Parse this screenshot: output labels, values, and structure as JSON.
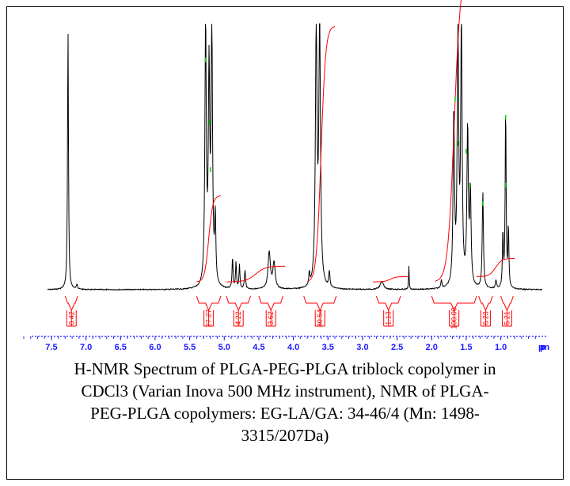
{
  "chart_data": {
    "type": "line",
    "title": "",
    "xlabel": "ppm",
    "ylabel": "",
    "xlim": [
      7.9,
      0.4
    ],
    "x_reversed": true,
    "ticks": [
      "7.5",
      "7.0",
      "6.5",
      "6.0",
      "5.5",
      "5.0",
      "4.5",
      "4.0",
      "3.5",
      "3.0",
      "2.5",
      "2.0",
      "1.5",
      "1.0"
    ],
    "tick_values": [
      7.5,
      7.0,
      6.5,
      6.0,
      5.5,
      5.0,
      4.5,
      4.0,
      3.5,
      3.0,
      2.5,
      2.0,
      1.5,
      1.0
    ],
    "axis_unit_label": "ppm",
    "peaks": [
      {
        "shift": 7.26,
        "height": 1.0,
        "width": 0.008
      },
      {
        "shift": 7.13,
        "height": 0.02,
        "width": 0.01
      },
      {
        "shift": 5.27,
        "height": 1.0,
        "width": 0.012
      },
      {
        "shift": 5.22,
        "height": 0.8,
        "width": 0.012
      },
      {
        "shift": 5.18,
        "height": 1.0,
        "width": 0.012
      },
      {
        "shift": 5.13,
        "height": 0.25,
        "width": 0.01
      },
      {
        "shift": 4.88,
        "height": 0.12,
        "width": 0.008
      },
      {
        "shift": 4.83,
        "height": 0.1,
        "width": 0.008
      },
      {
        "shift": 4.78,
        "height": 0.09,
        "width": 0.008
      },
      {
        "shift": 4.7,
        "height": 0.07,
        "width": 0.01
      },
      {
        "shift": 4.35,
        "height": 0.14,
        "width": 0.02
      },
      {
        "shift": 4.28,
        "height": 0.1,
        "width": 0.02
      },
      {
        "shift": 3.77,
        "height": 0.05,
        "width": 0.008
      },
      {
        "shift": 3.67,
        "height": 1.0,
        "width": 0.014
      },
      {
        "shift": 3.62,
        "height": 1.0,
        "width": 0.014
      },
      {
        "shift": 3.48,
        "height": 0.06,
        "width": 0.01
      },
      {
        "shift": 2.72,
        "height": 0.03,
        "width": 0.03
      },
      {
        "shift": 2.33,
        "height": 0.09,
        "width": 0.005
      },
      {
        "shift": 1.86,
        "height": 0.03,
        "width": 0.01
      },
      {
        "shift": 1.68,
        "height": 0.66,
        "width": 0.012
      },
      {
        "shift": 1.62,
        "height": 1.0,
        "width": 0.012
      },
      {
        "shift": 1.57,
        "height": 1.0,
        "width": 0.012
      },
      {
        "shift": 1.48,
        "height": 0.6,
        "width": 0.012
      },
      {
        "shift": 1.44,
        "height": 0.35,
        "width": 0.012
      },
      {
        "shift": 1.26,
        "height": 0.37,
        "width": 0.01
      },
      {
        "shift": 1.07,
        "height": 0.03,
        "width": 0.01
      },
      {
        "shift": 0.97,
        "height": 0.21,
        "width": 0.008
      },
      {
        "shift": 0.93,
        "height": 0.7,
        "width": 0.008
      },
      {
        "shift": 0.89,
        "height": 0.23,
        "width": 0.008
      }
    ],
    "integrals": [
      {
        "value": "0.42",
        "from": 7.3,
        "to": 7.12
      },
      {
        "value": "27.27",
        "from": 5.4,
        "to": 5.05
      },
      {
        "value": "4.22",
        "from": 4.97,
        "to": 4.62
      },
      {
        "value": "3.62",
        "from": 4.5,
        "to": 4.15
      },
      {
        "value": "80.54",
        "from": 3.85,
        "to": 3.38
      },
      {
        "value": "1.13",
        "from": 2.8,
        "to": 2.45
      },
      {
        "value": "100.00",
        "from": 2.0,
        "to": 1.35
      },
      {
        "value": "6.23",
        "from": 1.32,
        "to": 1.12
      },
      {
        "value": "5.21",
        "from": 1.0,
        "to": 0.82
      }
    ],
    "integral_curves": [
      {
        "from": 5.4,
        "to": 5.05,
        "base": 0.03,
        "rise": 0.33
      },
      {
        "from": 4.97,
        "to": 4.12,
        "base": 0.03,
        "rise": 0.06
      },
      {
        "from": 3.8,
        "to": 3.4,
        "base": 0.03,
        "rise": 0.98
      },
      {
        "from": 2.85,
        "to": 2.35,
        "base": 0.03,
        "rise": 0.02
      },
      {
        "from": 1.95,
        "to": 1.4,
        "base": 0.03,
        "rise": 1.2
      },
      {
        "from": 1.35,
        "to": 0.8,
        "base": 0.05,
        "rise": 0.07
      }
    ],
    "colors": {
      "spectrum": "#000000",
      "integral": "#ff0000",
      "axis": "#1a1aff",
      "markers": "#00d000"
    }
  },
  "caption": {
    "line1": "H-NMR Spectrum of PLGA-PEG-PLGA triblock copolymer in",
    "line2": "CDCl3 (Varian Inova 500 MHz instrument), NMR of PLGA-",
    "line3": "PEG-PLGA copolymers: EG-LA/GA: 34-46/4 (Mn: 1498-",
    "line4": "3315/207Da)"
  }
}
